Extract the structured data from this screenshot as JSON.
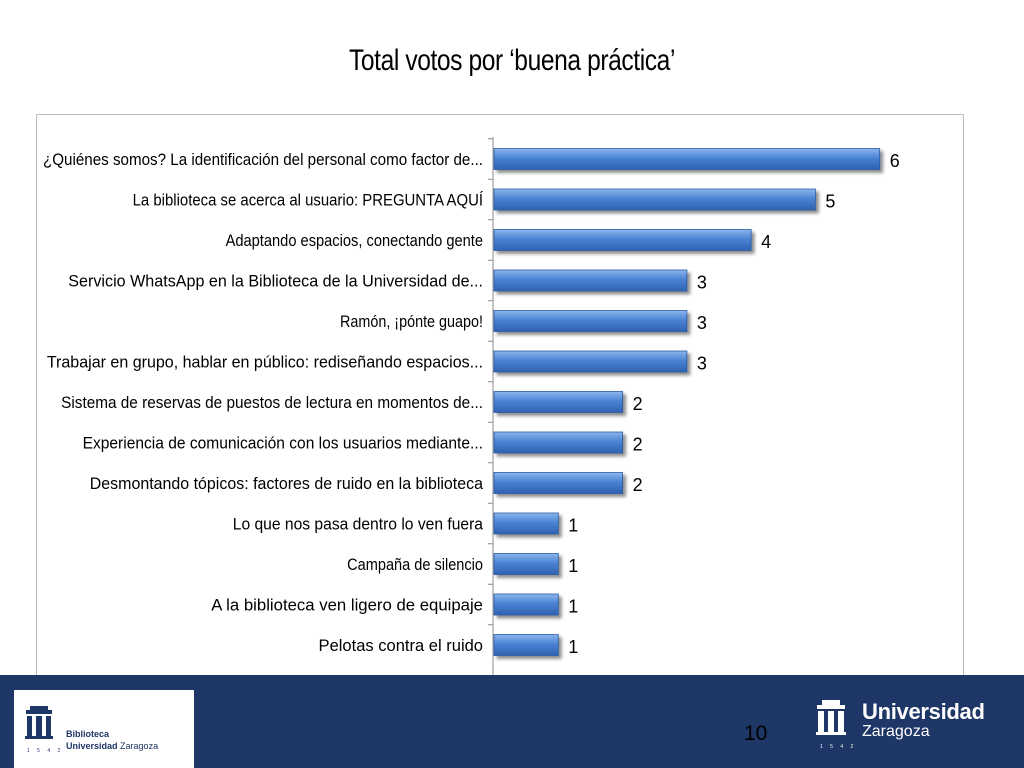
{
  "slide": {
    "title": "Total votos por ‘buena práctica’",
    "page_number": "10"
  },
  "footer": {
    "library_label": "Biblioteca",
    "university_name": "Universidad",
    "university_city": "Zaragoza",
    "logo_year": "1 5 4 2"
  },
  "colors": {
    "bar_fill": "#3f77c9",
    "bar_highlight": "#7eabe6",
    "footer_band": "#1f3766"
  },
  "chart_data": {
    "type": "bar",
    "orientation": "horizontal",
    "title": "Total votos por ‘buena práctica’",
    "xlim": [
      0,
      7
    ],
    "grid": false,
    "categories": [
      "¿Quiénes somos? La identificación del personal como factor de...",
      "La biblioteca se acerca al usuario: PREGUNTA AQUÍ",
      "Adaptando espacios, conectando gente",
      "Servicio WhatsApp en la Biblioteca de la Universidad de...",
      "Ramón, ¡pónte guapo!",
      "Trabajar en grupo, hablar en público: rediseñando espacios...",
      "Sistema de reservas de puestos de lectura en momentos de...",
      "Experiencia de comunicación con los usuarios mediante...",
      "Desmontando tópicos: factores de ruido en la biblioteca",
      "Lo que nos pasa dentro lo ven fuera",
      "Campaña de silencio",
      "A la biblioteca ven ligero de equipaje",
      "Pelotas contra el ruido"
    ],
    "values": [
      6,
      5,
      4,
      3,
      3,
      3,
      2,
      2,
      2,
      1,
      1,
      1,
      1
    ]
  }
}
